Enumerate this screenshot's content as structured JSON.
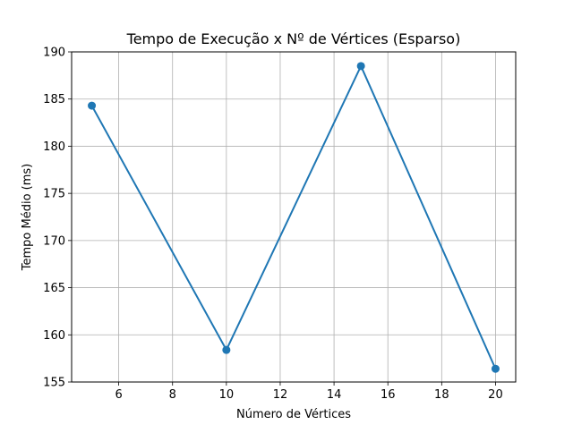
{
  "chart_data": {
    "type": "line",
    "title": "Tempo de Execução x Nº de Vértices (Esparso)",
    "xlabel": "Número de Vértices",
    "ylabel": "Tempo Médio (ms)",
    "x": [
      5,
      10,
      15,
      20
    ],
    "series": [
      {
        "values": [
          184.3,
          158.4,
          188.5,
          156.4
        ],
        "color": "#1f77b4",
        "marker": "circle"
      }
    ],
    "xlim": [
      4.25,
      20.75
    ],
    "ylim": [
      155.0,
      190.0
    ],
    "xticks": [
      6,
      8,
      10,
      12,
      14,
      16,
      18,
      20
    ],
    "yticks": [
      155,
      160,
      165,
      170,
      175,
      180,
      185,
      190
    ],
    "grid": true
  }
}
